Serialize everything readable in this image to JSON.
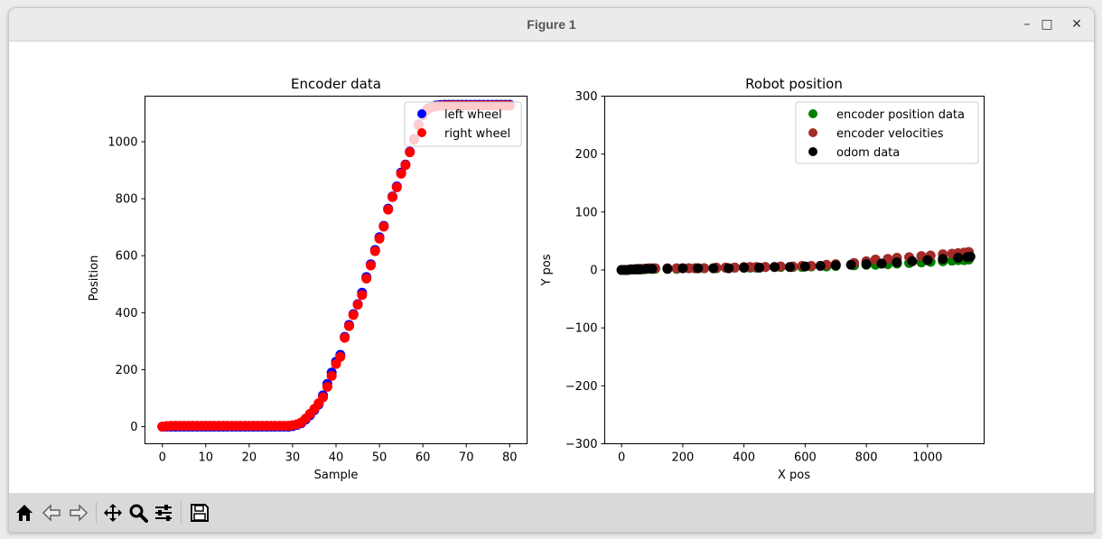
{
  "window": {
    "title": "Figure 1",
    "minimize_icon": "minimize-icon",
    "maximize_icon": "maximize-icon",
    "close_icon": "close-icon"
  },
  "toolbar": {
    "buttons": [
      "home-icon",
      "back-arrow-icon",
      "forward-arrow-icon",
      "pan-icon",
      "zoom-icon",
      "subplots-config-icon",
      "save-icon"
    ]
  },
  "chart_data": [
    {
      "type": "scatter",
      "title": "Encoder data",
      "xlabel": "Sample",
      "ylabel": "Position",
      "xlim": [
        -4,
        84
      ],
      "ylim": [
        -60,
        1160
      ],
      "xticks": [
        "0",
        "10",
        "20",
        "30",
        "40",
        "50",
        "60",
        "70",
        "80"
      ],
      "yticks": [
        "0",
        "200",
        "400",
        "600",
        "800",
        "1000"
      ],
      "legend_position": "top-right",
      "series": [
        {
          "name": "left wheel",
          "color": "#0000ff",
          "x": [
            0,
            1,
            2,
            3,
            4,
            5,
            6,
            7,
            8,
            9,
            10,
            11,
            12,
            13,
            14,
            15,
            16,
            17,
            18,
            19,
            20,
            21,
            22,
            23,
            24,
            25,
            26,
            27,
            28,
            29,
            30,
            31,
            32,
            33,
            34,
            35,
            36,
            37,
            38,
            39,
            40,
            41,
            42,
            43,
            44,
            45,
            46,
            47,
            48,
            49,
            50,
            51,
            52,
            53,
            54,
            55,
            56,
            57,
            58,
            59,
            60,
            61,
            62,
            63,
            64,
            65,
            66,
            67,
            68,
            69,
            70,
            71,
            72,
            73,
            74,
            75,
            76,
            77,
            78,
            79,
            80
          ],
          "y": [
            0,
            0,
            0,
            0,
            0,
            0,
            0,
            0,
            0,
            0,
            0,
            0,
            0,
            0,
            0,
            0,
            0,
            0,
            0,
            0,
            0,
            0,
            0,
            0,
            0,
            0,
            0,
            0,
            0,
            0,
            2,
            6,
            12,
            25,
            40,
            58,
            78,
            110,
            150,
            190,
            228,
            252,
            315,
            357,
            395,
            430,
            470,
            525,
            570,
            620,
            665,
            705,
            765,
            808,
            843,
            892,
            920,
            965,
            1010,
            1060,
            1095,
            1115,
            1123,
            1127,
            1129,
            1130,
            1130,
            1130,
            1130,
            1130,
            1130,
            1130,
            1130,
            1130,
            1130,
            1130,
            1130,
            1130,
            1130,
            1130,
            1130
          ]
        },
        {
          "name": "right wheel",
          "color": "#ff0000",
          "x": [
            0,
            1,
            2,
            3,
            4,
            5,
            6,
            7,
            8,
            9,
            10,
            11,
            12,
            13,
            14,
            15,
            16,
            17,
            18,
            19,
            20,
            21,
            22,
            23,
            24,
            25,
            26,
            27,
            28,
            29,
            30,
            31,
            32,
            33,
            34,
            35,
            36,
            37,
            38,
            39,
            40,
            41,
            42,
            43,
            44,
            45,
            46,
            47,
            48,
            49,
            50,
            51,
            52,
            53,
            54,
            55,
            56,
            57,
            58,
            59,
            60,
            61,
            62,
            63,
            64,
            65,
            66,
            67,
            68,
            69,
            70,
            71,
            72,
            73,
            74,
            75,
            76,
            77,
            78,
            79,
            80
          ],
          "y": [
            0,
            2,
            3,
            3,
            3,
            3,
            3,
            3,
            3,
            3,
            3,
            3,
            3,
            3,
            3,
            3,
            3,
            3,
            3,
            3,
            3,
            3,
            3,
            3,
            3,
            3,
            3,
            3,
            3,
            3,
            5,
            8,
            15,
            28,
            45,
            62,
            82,
            103,
            140,
            178,
            220,
            245,
            312,
            353,
            392,
            428,
            462,
            520,
            566,
            616,
            660,
            702,
            762,
            806,
            840,
            888,
            918,
            963,
            1008,
            1058,
            1093,
            1113,
            1120,
            1124,
            1126,
            1127,
            1127,
            1127,
            1127,
            1127,
            1127,
            1127,
            1127,
            1127,
            1127,
            1127,
            1127,
            1127,
            1127,
            1127,
            1127
          ]
        }
      ]
    },
    {
      "type": "scatter",
      "title": "Robot position",
      "xlabel": "X pos",
      "ylabel": "Y pos",
      "xlim": [
        -55,
        1185
      ],
      "ylim": [
        -300,
        300
      ],
      "xticks": [
        "0",
        "200",
        "400",
        "600",
        "800",
        "1000"
      ],
      "yticks": [
        "300",
        "200",
        "100",
        "0",
        "−100",
        "−200",
        "−300"
      ],
      "legend_position": "top-right",
      "series": [
        {
          "name": "encoder position data",
          "color": "#008000",
          "x": [
            0,
            10,
            20,
            30,
            40,
            50,
            60,
            70,
            80,
            90,
            100,
            110,
            150,
            180,
            220,
            240,
            270,
            310,
            340,
            370,
            400,
            420,
            440,
            470,
            520,
            560,
            590,
            620,
            670,
            700,
            760,
            800,
            830,
            870,
            900,
            940,
            980,
            1010,
            1050,
            1080,
            1100,
            1120,
            1135
          ],
          "y": [
            0,
            0,
            0,
            1,
            1,
            1,
            1,
            1,
            2,
            2,
            2,
            2,
            2,
            2,
            3,
            3,
            3,
            3,
            4,
            4,
            4,
            4,
            4,
            5,
            5,
            5,
            5,
            6,
            6,
            7,
            8,
            9,
            9,
            10,
            11,
            12,
            13,
            14,
            15,
            16,
            17,
            17,
            18
          ]
        },
        {
          "name": "encoder velocities",
          "color": "#a52a2a",
          "x": [
            0,
            10,
            20,
            30,
            40,
            50,
            60,
            70,
            80,
            90,
            100,
            110,
            150,
            180,
            220,
            240,
            270,
            310,
            340,
            370,
            400,
            420,
            440,
            470,
            520,
            560,
            590,
            620,
            670,
            700,
            760,
            800,
            830,
            870,
            900,
            940,
            980,
            1010,
            1050,
            1080,
            1100,
            1120,
            1135
          ],
          "y": [
            0,
            0,
            0,
            1,
            1,
            2,
            2,
            2,
            2,
            3,
            3,
            3,
            3,
            3,
            3,
            3,
            3,
            4,
            4,
            4,
            5,
            5,
            5,
            5,
            6,
            6,
            7,
            7,
            9,
            10,
            12,
            15,
            18,
            19,
            21,
            22,
            24,
            25,
            27,
            28,
            29,
            30,
            31
          ]
        },
        {
          "name": "odom data",
          "color": "#000000",
          "x": [
            0,
            10,
            20,
            30,
            40,
            50,
            60,
            80,
            100,
            150,
            200,
            250,
            300,
            350,
            400,
            450,
            500,
            550,
            600,
            650,
            700,
            750,
            800,
            850,
            900,
            950,
            1000,
            1050,
            1100,
            1130,
            1140
          ],
          "y": [
            0,
            0,
            0,
            1,
            1,
            1,
            1,
            2,
            2,
            2,
            3,
            3,
            3,
            3,
            4,
            4,
            5,
            5,
            6,
            7,
            8,
            9,
            10,
            11,
            13,
            15,
            17,
            19,
            21,
            22,
            23
          ]
        }
      ]
    }
  ]
}
